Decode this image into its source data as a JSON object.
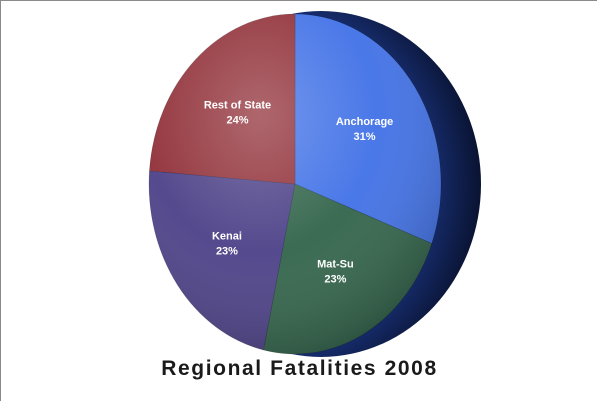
{
  "chart_data": {
    "type": "pie",
    "title": "Regional Fatalities 2008",
    "slices": [
      {
        "label": "Anchorage",
        "value": 31,
        "value_label": "31%",
        "color": "#3e6fe6"
      },
      {
        "label": "Mat-Su",
        "value": 23,
        "value_label": "23%",
        "color": "#2f6248"
      },
      {
        "label": "Kenai",
        "value": 23,
        "value_label": "23%",
        "color": "#4a3e86"
      },
      {
        "label": "Rest of State",
        "value": 24,
        "value_label": "24%",
        "color": "#8f2c35"
      }
    ],
    "start_direction": "top",
    "orientation": "clockwise",
    "legend": "none"
  }
}
